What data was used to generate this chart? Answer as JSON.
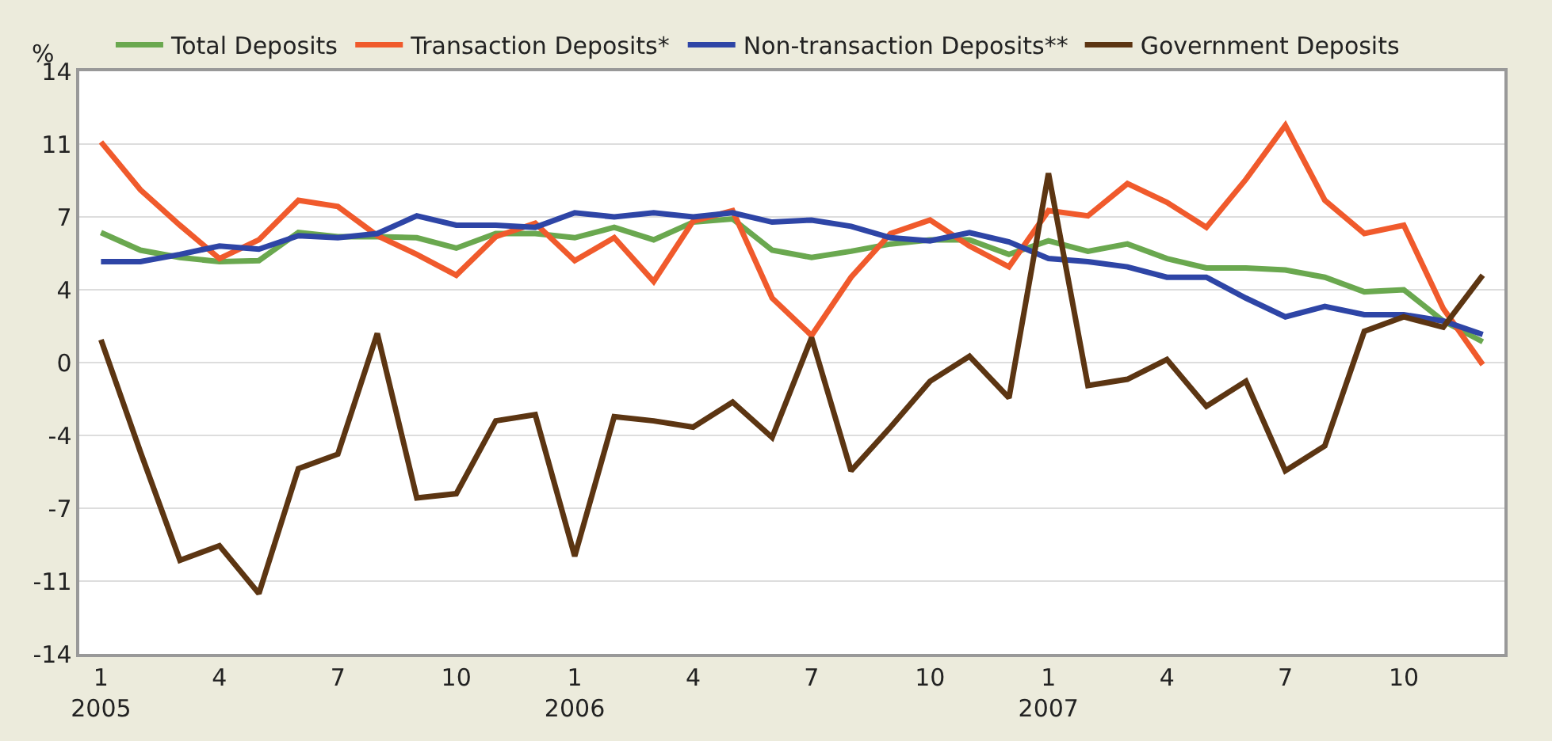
{
  "chart_data": {
    "type": "line",
    "ylabel": "%",
    "categories": [
      "1\n2005",
      null,
      null,
      "4",
      null,
      null,
      "7",
      null,
      null,
      "10",
      null,
      null,
      "1\n2006",
      null,
      null,
      "4",
      null,
      null,
      "7",
      null,
      null,
      "10",
      null,
      null,
      "1\n2007",
      null,
      null,
      "4",
      null,
      null,
      "7",
      null,
      null,
      "10",
      null,
      null
    ],
    "series": [
      {
        "name": "Total Deposits",
        "color": "#6aa84f",
        "values": [
          6.25,
          5.4,
          5.05,
          4.85,
          4.9,
          6.25,
          6.05,
          6.05,
          6.0,
          5.5,
          6.2,
          6.2,
          6.0,
          6.5,
          5.9,
          6.75,
          6.9,
          5.4,
          5.05,
          5.35,
          5.7,
          5.9,
          5.9,
          5.2,
          5.85,
          5.35,
          5.7,
          5.0,
          4.55,
          4.55,
          4.45,
          4.1,
          3.4,
          3.5,
          2.0,
          1.0
        ]
      },
      {
        "name": "Transaction Deposits*",
        "color": "#f05a2c",
        "values": [
          10.6,
          8.3,
          6.6,
          5.0,
          5.9,
          7.8,
          7.5,
          6.1,
          5.2,
          4.2,
          6.05,
          6.7,
          4.9,
          6.0,
          3.9,
          6.8,
          7.3,
          3.1,
          1.3,
          4.1,
          6.2,
          6.85,
          5.6,
          4.6,
          7.3,
          7.05,
          8.6,
          7.7,
          6.5,
          8.8,
          11.4,
          7.8,
          6.2,
          6.6,
          2.6,
          -0.1
        ]
      },
      {
        "name": "Non-transaction Deposits**",
        "color": "#2e45a6",
        "values": [
          4.85,
          4.85,
          5.2,
          5.6,
          5.45,
          6.1,
          6.0,
          6.2,
          7.05,
          6.6,
          6.6,
          6.5,
          7.2,
          7.0,
          7.2,
          7.0,
          7.2,
          6.75,
          6.85,
          6.55,
          6.0,
          5.85,
          6.25,
          5.8,
          5.0,
          4.85,
          4.6,
          4.1,
          4.1,
          3.1,
          2.2,
          2.7,
          2.3,
          2.3,
          2.0,
          1.35
        ]
      },
      {
        "name": "Government Deposits",
        "color": "#5c3512",
        "values": [
          1.1,
          -4.3,
          -9.5,
          -8.8,
          -11.1,
          -5.1,
          -4.4,
          1.4,
          -6.5,
          -6.3,
          -2.8,
          -2.5,
          -9.3,
          -2.6,
          -2.8,
          -3.1,
          -1.9,
          -3.6,
          1.2,
          -5.2,
          -3.1,
          -0.9,
          0.3,
          -1.7,
          9.1,
          -1.1,
          -0.8,
          0.15,
          -2.1,
          -0.9,
          -5.2,
          -4.0,
          1.5,
          2.2,
          1.7,
          4.2
        ]
      }
    ],
    "ylim": [
      -14,
      14
    ],
    "yticks": [
      -14,
      {
        "value": -10.5,
        "label": "-11"
      },
      -7,
      {
        "value": -3.5,
        "label": "-4"
      },
      0,
      {
        "value": 3.5,
        "label": "4"
      },
      7,
      {
        "value": 10.5,
        "label": "11"
      },
      14
    ],
    "grid": "y",
    "legend": "top",
    "marker": "none",
    "line_style": "solid"
  }
}
